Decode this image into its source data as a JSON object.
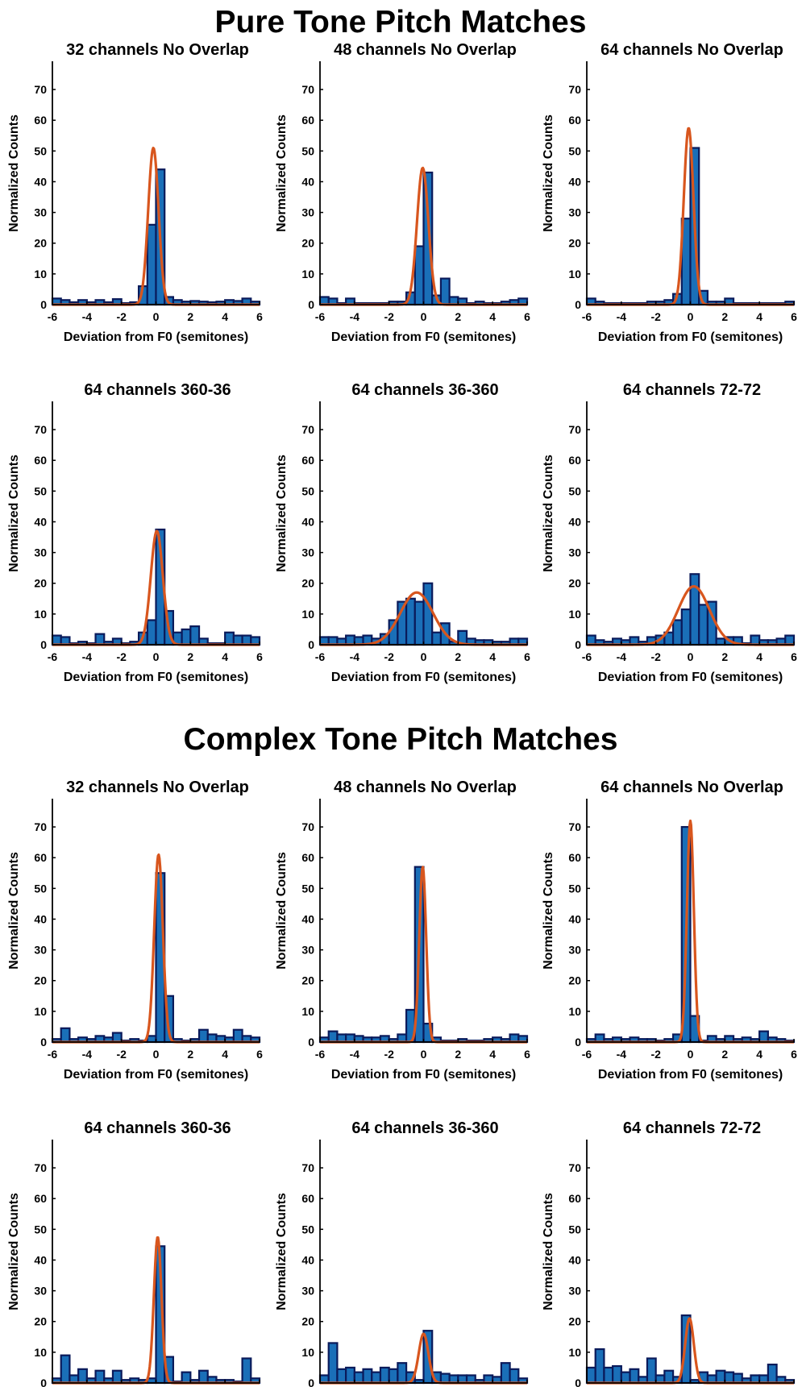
{
  "titles": {
    "pure": "Pure Tone Pitch Matches",
    "complex": "Complex Tone Pitch Matches"
  },
  "colors": {
    "bar_fill": "#1a6fb8",
    "bar_edge": "#0a1a5a",
    "fit_line": "#d8561e",
    "axis": "#000000"
  },
  "chart_data": [
    {
      "section": "pure",
      "type": "bar",
      "title": "32 channels No Overlap",
      "xlabel": "Deviation from F0 (semitones)",
      "ylabel": "Normalized Counts",
      "xlim": [
        -6,
        6
      ],
      "ylim": [
        0,
        75
      ],
      "xticks": [
        "-6",
        "-4",
        "-2",
        "0",
        "2",
        "4",
        "6"
      ],
      "yticks": [
        "0",
        "10",
        "20",
        "30",
        "40",
        "50",
        "60",
        "70"
      ],
      "bins": [
        -5.75,
        -5.25,
        -4.75,
        -4.25,
        -3.75,
        -3.25,
        -2.75,
        -2.25,
        -1.75,
        -1.25,
        -0.75,
        -0.25,
        0.25,
        0.75,
        1.25,
        1.75,
        2.25,
        2.75,
        3.25,
        3.75,
        4.25,
        4.75,
        5.25,
        5.75
      ],
      "values": [
        2,
        1.5,
        0.8,
        1.5,
        0.8,
        1.5,
        0.8,
        1.8,
        0.5,
        0.8,
        6,
        26,
        44,
        2.5,
        1.5,
        1,
        1.2,
        1,
        0.8,
        1,
        1.5,
        1.2,
        2,
        1
      ],
      "fit": {
        "amp": 51,
        "mu": -0.15,
        "sigma": 0.3
      }
    },
    {
      "section": "pure",
      "type": "bar",
      "title": "48 channels No Overlap",
      "xlabel": "Deviation from F0 (semitones)",
      "ylabel": "Normalized Counts",
      "xlim": [
        -6,
        6
      ],
      "ylim": [
        0,
        75
      ],
      "xticks": [
        "-6",
        "-4",
        "-2",
        "0",
        "2",
        "4",
        "6"
      ],
      "yticks": [
        "0",
        "10",
        "20",
        "30",
        "40",
        "50",
        "60",
        "70"
      ],
      "bins": [
        -5.75,
        -5.25,
        -4.75,
        -4.25,
        -3.75,
        -3.25,
        -2.75,
        -2.25,
        -1.75,
        -1.25,
        -0.75,
        -0.25,
        0.25,
        0.75,
        1.25,
        1.75,
        2.25,
        2.75,
        3.25,
        3.75,
        4.25,
        4.75,
        5.25,
        5.75
      ],
      "values": [
        2.5,
        2,
        0.5,
        2,
        0.5,
        0.5,
        0.5,
        0.5,
        1,
        1,
        4,
        19,
        43,
        3,
        8.5,
        2.5,
        2,
        0.5,
        1,
        0.5,
        0.5,
        1,
        1.5,
        2
      ],
      "fit": {
        "amp": 44.5,
        "mu": -0.05,
        "sigma": 0.33
      }
    },
    {
      "section": "pure",
      "type": "bar",
      "title": "64 channels No Overlap",
      "xlabel": "Deviation from F0 (semitones)",
      "ylabel": "Normalized Counts",
      "xlim": [
        -6,
        6
      ],
      "ylim": [
        0,
        75
      ],
      "xticks": [
        "-6",
        "-4",
        "-2",
        "0",
        "2",
        "4",
        "6"
      ],
      "yticks": [
        "0",
        "10",
        "20",
        "30",
        "40",
        "50",
        "60",
        "70"
      ],
      "bins": [
        -5.75,
        -5.25,
        -4.75,
        -4.25,
        -3.75,
        -3.25,
        -2.75,
        -2.25,
        -1.75,
        -1.25,
        -0.75,
        -0.25,
        0.25,
        0.75,
        1.25,
        1.75,
        2.25,
        2.75,
        3.25,
        3.75,
        4.25,
        4.75,
        5.25,
        5.75
      ],
      "values": [
        2,
        1,
        0.5,
        0.5,
        0.5,
        0.5,
        0.5,
        1,
        1,
        1.5,
        3.5,
        28,
        51,
        4.5,
        1,
        1,
        2,
        0.5,
        0.5,
        0.5,
        0.5,
        0.5,
        0.5,
        1
      ],
      "fit": {
        "amp": 57.5,
        "mu": -0.1,
        "sigma": 0.28
      }
    },
    {
      "section": "pure",
      "type": "bar",
      "title": "64 channels 360-36",
      "xlabel": "Deviation from F0 (semitones)",
      "ylabel": "Normalized Counts",
      "xlim": [
        -6,
        6
      ],
      "ylim": [
        0,
        75
      ],
      "xticks": [
        "-6",
        "-4",
        "-2",
        "0",
        "2",
        "4",
        "6"
      ],
      "yticks": [
        "0",
        "10",
        "20",
        "30",
        "40",
        "50",
        "60",
        "70"
      ],
      "bins": [
        -5.75,
        -5.25,
        -4.75,
        -4.25,
        -3.75,
        -3.25,
        -2.75,
        -2.25,
        -1.75,
        -1.25,
        -0.75,
        -0.25,
        0.25,
        0.75,
        1.25,
        1.75,
        2.25,
        2.75,
        3.25,
        3.75,
        4.25,
        4.75,
        5.25,
        5.75
      ],
      "values": [
        3,
        2.5,
        0.5,
        1,
        0.5,
        3.5,
        1,
        2,
        0.5,
        1,
        4,
        8,
        37.5,
        11,
        4,
        5,
        6,
        2,
        0.5,
        0.5,
        4,
        3,
        3,
        2.5
      ],
      "fit": {
        "amp": 37,
        "mu": 0.05,
        "sigma": 0.35
      }
    },
    {
      "section": "pure",
      "type": "bar",
      "title": "64 channels 36-360",
      "xlabel": "Deviation from F0 (semitones)",
      "ylabel": "Normalized Counts",
      "xlim": [
        -6,
        6
      ],
      "ylim": [
        0,
        75
      ],
      "xticks": [
        "-6",
        "-4",
        "-2",
        "0",
        "2",
        "4",
        "6"
      ],
      "yticks": [
        "0",
        "10",
        "20",
        "30",
        "40",
        "50",
        "60",
        "70"
      ],
      "bins": [
        -5.75,
        -5.25,
        -4.75,
        -4.25,
        -3.75,
        -3.25,
        -2.75,
        -2.25,
        -1.75,
        -1.25,
        -0.75,
        -0.25,
        0.25,
        0.75,
        1.25,
        1.75,
        2.25,
        2.75,
        3.25,
        3.75,
        4.25,
        4.75,
        5.25,
        5.75
      ],
      "values": [
        2.5,
        2.5,
        2,
        3,
        2.5,
        3,
        2,
        3.5,
        8,
        14,
        15,
        14,
        20,
        4,
        7,
        1,
        4.5,
        2,
        1.5,
        1.5,
        1,
        1,
        2,
        2
      ],
      "fit": {
        "amp": 17,
        "mu": -0.4,
        "sigma": 0.95
      }
    },
    {
      "section": "pure",
      "type": "bar",
      "title": "64 channels 72-72",
      "xlabel": "Deviation from F0 (semitones)",
      "ylabel": "Normalized Counts",
      "xlim": [
        -6,
        6
      ],
      "ylim": [
        0,
        75
      ],
      "xticks": [
        "-6",
        "-4",
        "-2",
        "0",
        "2",
        "4",
        "6"
      ],
      "yticks": [
        "0",
        "10",
        "20",
        "30",
        "40",
        "50",
        "60",
        "70"
      ],
      "bins": [
        -5.75,
        -5.25,
        -4.75,
        -4.25,
        -3.75,
        -3.25,
        -2.75,
        -2.25,
        -1.75,
        -1.25,
        -0.75,
        -0.25,
        0.25,
        0.75,
        1.25,
        1.75,
        2.25,
        2.75,
        3.25,
        3.75,
        4.25,
        4.75,
        5.25,
        5.75
      ],
      "values": [
        3,
        1.5,
        1,
        2,
        1.5,
        2.5,
        1,
        2.5,
        3,
        4,
        8,
        11.5,
        23,
        13,
        14,
        2,
        2.5,
        2.5,
        0.5,
        3,
        1.5,
        1.5,
        2,
        3
      ],
      "fit": {
        "amp": 19,
        "mu": 0.2,
        "sigma": 0.9
      }
    },
    {
      "section": "complex",
      "type": "bar",
      "title": "32 channels No Overlap",
      "xlabel": "Deviation from F0 (semitones)",
      "ylabel": "Normalized Counts",
      "xlim": [
        -6,
        6
      ],
      "ylim": [
        0,
        75
      ],
      "xticks": [
        "-6",
        "-4",
        "-2",
        "0",
        "2",
        "4",
        "6"
      ],
      "yticks": [
        "0",
        "10",
        "20",
        "30",
        "40",
        "50",
        "60",
        "70"
      ],
      "bins": [
        -5.75,
        -5.25,
        -4.75,
        -4.25,
        -3.75,
        -3.25,
        -2.75,
        -2.25,
        -1.75,
        -1.25,
        -0.75,
        -0.25,
        0.25,
        0.75,
        1.25,
        1.75,
        2.25,
        2.75,
        3.25,
        3.75,
        4.25,
        4.75,
        5.25,
        5.75
      ],
      "values": [
        1,
        4.5,
        1,
        1.5,
        1,
        2,
        1.5,
        3,
        0.5,
        1,
        0.5,
        2,
        55,
        15,
        1,
        0.5,
        1,
        4,
        2.5,
        2,
        1.5,
        4,
        2,
        1.5
      ],
      "fit": {
        "amp": 61,
        "mu": 0.15,
        "sigma": 0.25
      }
    },
    {
      "section": "complex",
      "type": "bar",
      "title": "48 channels No Overlap",
      "xlabel": "Deviation from F0 (semitones)",
      "ylabel": "Normalized Counts",
      "xlim": [
        -6,
        6
      ],
      "ylim": [
        0,
        75
      ],
      "xticks": [
        "-6",
        "-4",
        "-2",
        "0",
        "2",
        "4",
        "6"
      ],
      "yticks": [
        "0",
        "10",
        "20",
        "30",
        "40",
        "50",
        "60",
        "70"
      ],
      "bins": [
        -5.75,
        -5.25,
        -4.75,
        -4.25,
        -3.75,
        -3.25,
        -2.75,
        -2.25,
        -1.75,
        -1.25,
        -0.75,
        -0.25,
        0.25,
        0.75,
        1.25,
        1.75,
        2.25,
        2.75,
        3.25,
        3.75,
        4.25,
        4.75,
        5.25,
        5.75
      ],
      "values": [
        1.5,
        3.5,
        2.5,
        2.5,
        2,
        1.5,
        1.5,
        2,
        1,
        2.5,
        10.5,
        57,
        6,
        1.5,
        0.5,
        0.5,
        1,
        0.5,
        0.5,
        1,
        1.5,
        1,
        2.5,
        2
      ],
      "fit": {
        "amp": 57,
        "mu": -0.05,
        "sigma": 0.2
      }
    },
    {
      "section": "complex",
      "type": "bar",
      "title": "64 channels No Overlap",
      "xlabel": "Deviation from F0 (semitones)",
      "ylabel": "Normalized Counts",
      "xlim": [
        -6,
        6
      ],
      "ylim": [
        0,
        75
      ],
      "xticks": [
        "-6",
        "-4",
        "-2",
        "0",
        "2",
        "4",
        "6"
      ],
      "yticks": [
        "0",
        "10",
        "20",
        "30",
        "40",
        "50",
        "60",
        "70"
      ],
      "bins": [
        -5.75,
        -5.25,
        -4.75,
        -4.25,
        -3.75,
        -3.25,
        -2.75,
        -2.25,
        -1.75,
        -1.25,
        -0.75,
        -0.25,
        0.25,
        0.75,
        1.25,
        1.75,
        2.25,
        2.75,
        3.25,
        3.75,
        4.25,
        4.75,
        5.25,
        5.75
      ],
      "values": [
        1,
        2.5,
        1,
        1.5,
        1,
        1.5,
        1,
        1,
        0.5,
        1,
        2.5,
        70,
        8.5,
        0.5,
        2,
        1,
        2,
        1,
        1.5,
        1,
        3.5,
        1.5,
        1,
        0.5
      ],
      "fit": {
        "amp": 72,
        "mu": 0,
        "sigma": 0.2
      }
    },
    {
      "section": "complex",
      "type": "bar",
      "title": "64 channels 360-36",
      "xlabel": "Deviation from F0 (semitones)",
      "ylabel": "Normalized Counts",
      "xlim": [
        -6,
        6
      ],
      "ylim": [
        0,
        75
      ],
      "xticks": [
        "-6",
        "-4",
        "-2",
        "0",
        "2",
        "4",
        "6"
      ],
      "yticks": [
        "0",
        "10",
        "20",
        "30",
        "40",
        "50",
        "60",
        "70"
      ],
      "bins": [
        -5.75,
        -5.25,
        -4.75,
        -4.25,
        -3.75,
        -3.25,
        -2.75,
        -2.25,
        -1.75,
        -1.25,
        -0.75,
        -0.25,
        0.25,
        0.75,
        1.25,
        1.75,
        2.25,
        2.75,
        3.25,
        3.75,
        4.25,
        4.75,
        5.25,
        5.75
      ],
      "values": [
        1.5,
        9,
        2.5,
        4.5,
        1.5,
        4,
        1.5,
        4,
        1,
        1.5,
        1,
        1.5,
        44.5,
        8.5,
        0.5,
        3.5,
        1,
        4,
        2,
        1,
        1,
        0.5,
        8,
        1.5
      ],
      "fit": {
        "amp": 47.5,
        "mu": 0.1,
        "sigma": 0.22
      }
    },
    {
      "section": "complex",
      "type": "bar",
      "title": "64 channels 36-360",
      "xlabel": "Deviation from F0 (semitones)",
      "ylabel": "Normalized Counts",
      "xlim": [
        -6,
        6
      ],
      "ylim": [
        0,
        75
      ],
      "xticks": [
        "-6",
        "-4",
        "-2",
        "0",
        "2",
        "4",
        "6"
      ],
      "yticks": [
        "0",
        "10",
        "20",
        "30",
        "40",
        "50",
        "60",
        "70"
      ],
      "bins": [
        -5.75,
        -5.25,
        -4.75,
        -4.25,
        -3.75,
        -3.25,
        -2.75,
        -2.25,
        -1.75,
        -1.25,
        -0.75,
        -0.25,
        0.25,
        0.75,
        1.25,
        1.75,
        2.25,
        2.75,
        3.25,
        3.75,
        4.25,
        4.75,
        5.25,
        5.75
      ],
      "values": [
        2.5,
        13,
        4.5,
        5,
        3.5,
        4.5,
        3.5,
        5,
        4.5,
        6.5,
        3.5,
        1,
        17,
        3.5,
        3,
        2.5,
        2.5,
        2.5,
        1,
        2.5,
        2,
        6.5,
        4.5,
        1.5
      ],
      "fit": {
        "amp": 16,
        "mu": 0,
        "sigma": 0.28
      }
    },
    {
      "section": "complex",
      "type": "bar",
      "title": "64 channels 72-72",
      "xlabel": "Deviation from F0 (semitones)",
      "ylabel": "Normalized Counts",
      "xlim": [
        -6,
        6
      ],
      "ylim": [
        0,
        75
      ],
      "xticks": [
        "-6",
        "-4",
        "-2",
        "0",
        "2",
        "4",
        "6"
      ],
      "yticks": [
        "0",
        "10",
        "20",
        "30",
        "40",
        "50",
        "60",
        "70"
      ],
      "bins": [
        -5.75,
        -5.25,
        -4.75,
        -4.25,
        -3.75,
        -3.25,
        -2.75,
        -2.25,
        -1.75,
        -1.25,
        -0.75,
        -0.25,
        0.25,
        0.75,
        1.25,
        1.75,
        2.25,
        2.75,
        3.25,
        3.75,
        4.25,
        4.75,
        5.25,
        5.75
      ],
      "values": [
        5,
        11,
        5,
        5.5,
        3.5,
        4.5,
        2,
        8,
        2.5,
        4,
        2,
        22,
        1,
        3.5,
        2.5,
        4,
        3.5,
        3,
        1.5,
        2.5,
        2.5,
        6,
        2,
        1
      ],
      "fit": {
        "amp": 21,
        "mu": -0.05,
        "sigma": 0.25
      }
    }
  ]
}
